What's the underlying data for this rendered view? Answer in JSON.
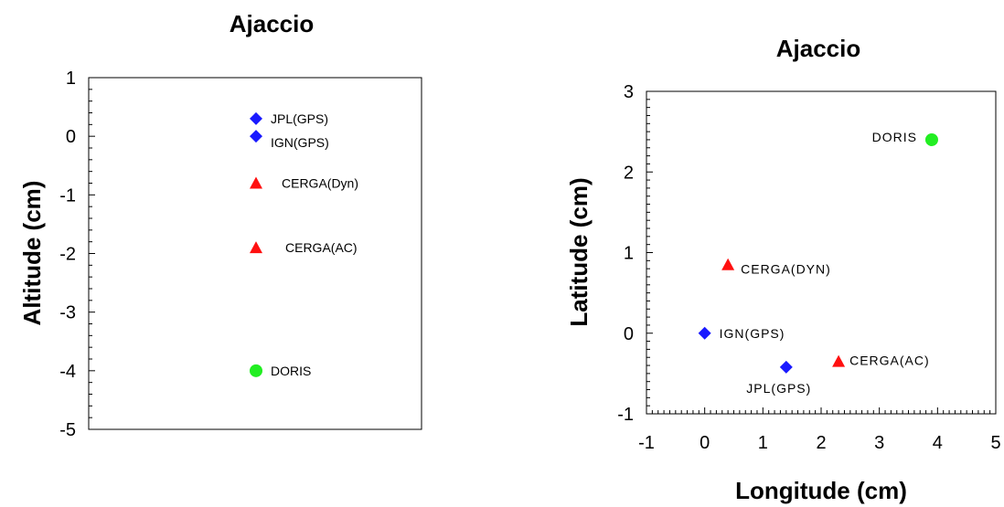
{
  "chart_data": [
    {
      "type": "scatter",
      "title": "Ajaccio",
      "xlabel": "",
      "ylabel": "Altitude (cm)",
      "ylim": [
        -5,
        1
      ],
      "yticks": [
        "1",
        "0",
        "-1",
        "-2",
        "-3",
        "-4",
        "-5"
      ],
      "grid": false,
      "points": [
        {
          "label": "JPL(GPS)",
          "y": 0.3,
          "marker": "diamond",
          "color": "#1a1aff"
        },
        {
          "label": "IGN(GPS)",
          "y": 0.0,
          "marker": "diamond",
          "color": "#1a1aff"
        },
        {
          "label": "CERGA(Dyn)",
          "y": -0.8,
          "marker": "triangle",
          "color": "#ff1010"
        },
        {
          "label": "CERGA(AC)",
          "y": -1.9,
          "marker": "triangle",
          "color": "#ff1010"
        },
        {
          "label": "DORIS",
          "y": -4.0,
          "marker": "circle",
          "color": "#22ee22"
        }
      ]
    },
    {
      "type": "scatter",
      "title": "Ajaccio",
      "xlabel": "Longitude (cm)",
      "ylabel": "Latitude (cm)",
      "xlim": [
        -1,
        5
      ],
      "ylim": [
        -1,
        3
      ],
      "xticks": [
        "-1",
        "0",
        "1",
        "2",
        "3",
        "4",
        "5"
      ],
      "yticks": [
        "3",
        "2",
        "1",
        "0",
        "-1"
      ],
      "grid": false,
      "points": [
        {
          "label": "DORIS",
          "x": 3.9,
          "y": 2.4,
          "marker": "circle",
          "color": "#22ee22"
        },
        {
          "label": "CERGA(DYN)",
          "x": 0.4,
          "y": 0.85,
          "marker": "triangle",
          "color": "#ff1010"
        },
        {
          "label": "IGN(GPS)",
          "x": 0.0,
          "y": 0.0,
          "marker": "diamond",
          "color": "#1a1aff"
        },
        {
          "label": "CERGA(AC)",
          "x": 2.3,
          "y": -0.35,
          "marker": "triangle",
          "color": "#ff1010"
        },
        {
          "label": "JPL(GPS)",
          "x": 1.4,
          "y": -0.42,
          "marker": "diamond",
          "color": "#1a1aff"
        }
      ]
    }
  ]
}
